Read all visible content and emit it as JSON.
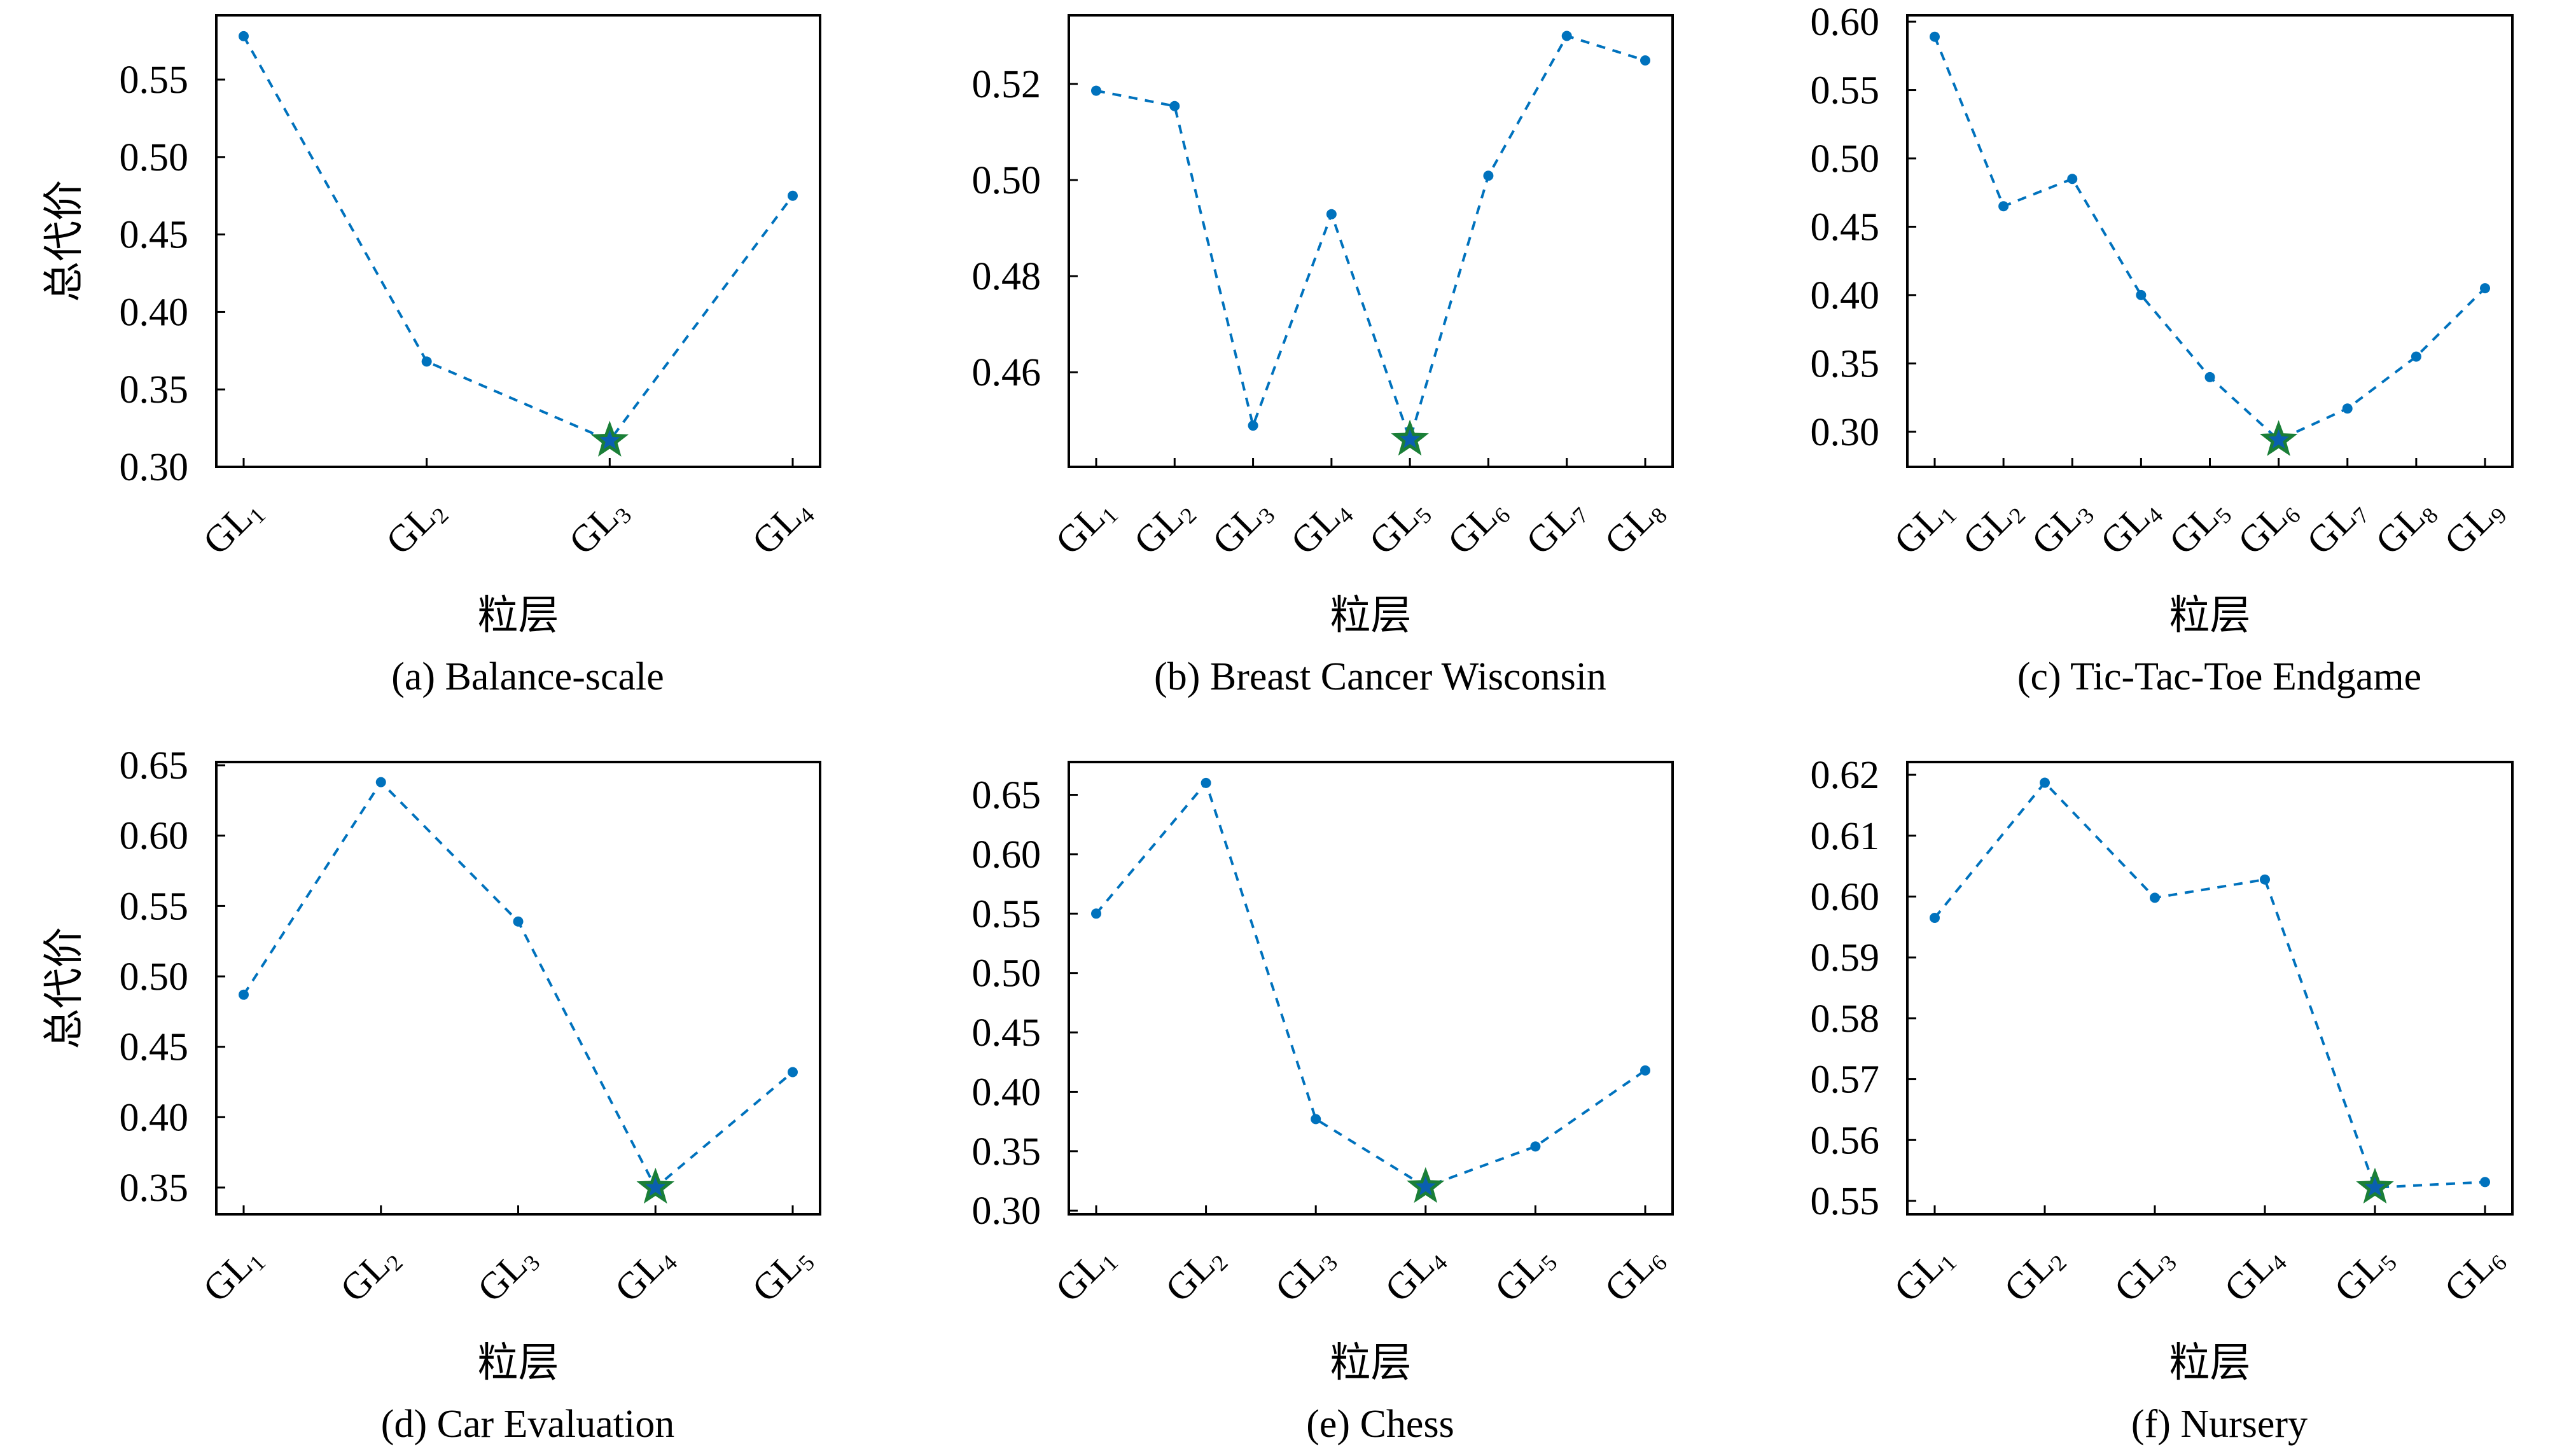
{
  "colors": {
    "line": "#0072BD",
    "marker": "#0072BD",
    "best_star_outline": "#1a7f37",
    "best_star_fill": "#0a5fb0",
    "axis": "#000000"
  },
  "chart_data": [
    {
      "type": "line",
      "title": "(a) Balance-scale",
      "xlabel": "粒层",
      "ylabel": "总代价",
      "categories": [
        "GL1",
        "GL2",
        "GL3",
        "GL4"
      ],
      "values": [
        0.578,
        0.368,
        0.317,
        0.475
      ],
      "best_index": 2,
      "ylim": [
        0.3,
        0.5915
      ],
      "yticks": [
        "0.30",
        "0.35",
        "0.40",
        "0.45",
        "0.50",
        "0.55"
      ],
      "grid": false
    },
    {
      "type": "line",
      "title": "(b) Breast Cancer Wisconsin",
      "xlabel": "粒层",
      "ylabel": "",
      "categories": [
        "GL1",
        "GL2",
        "GL3",
        "GL4",
        "GL5",
        "GL6",
        "GL7",
        "GL8"
      ],
      "values": [
        0.5186,
        0.5154,
        0.4489,
        0.4929,
        0.446,
        0.5009,
        0.53,
        0.5249
      ],
      "best_index": 4,
      "ylim": [
        0.4403,
        0.5343
      ],
      "yticks": [
        "0.46",
        "0.48",
        "0.50",
        "0.52"
      ],
      "grid": false
    },
    {
      "type": "line",
      "title": "(c) Tic-Tac-Toe Endgame",
      "xlabel": "粒层",
      "ylabel": "",
      "categories": [
        "GL1",
        "GL2",
        "GL3",
        "GL4",
        "GL5",
        "GL6",
        "GL7",
        "GL8",
        "GL9"
      ],
      "values": [
        0.589,
        0.465,
        0.485,
        0.4,
        0.34,
        0.294,
        0.317,
        0.355,
        0.405
      ],
      "best_index": 5,
      "ylim": [
        0.2743,
        0.6047
      ],
      "yticks": [
        "0.30",
        "0.35",
        "0.40",
        "0.45",
        "0.50",
        "0.55",
        "0.60"
      ],
      "grid": false
    },
    {
      "type": "line",
      "title": "(d) Car Evaluation",
      "xlabel": "粒层",
      "ylabel": "总代价",
      "categories": [
        "GL1",
        "GL2",
        "GL3",
        "GL4",
        "GL5"
      ],
      "values": [
        0.487,
        0.638,
        0.539,
        0.35,
        0.432
      ],
      "best_index": 3,
      "ylim": [
        0.331,
        0.6523
      ],
      "yticks": [
        "0.35",
        "0.40",
        "0.45",
        "0.50",
        "0.55",
        "0.60",
        "0.65"
      ],
      "grid": false
    },
    {
      "type": "line",
      "title": "(e) Chess",
      "xlabel": "粒层",
      "ylabel": "",
      "categories": [
        "GL1",
        "GL2",
        "GL3",
        "GL4",
        "GL5",
        "GL6"
      ],
      "values": [
        0.55,
        0.66,
        0.377,
        0.32,
        0.354,
        0.418
      ],
      "best_index": 3,
      "ylim": [
        0.2969,
        0.6776
      ],
      "yticks": [
        "0.30",
        "0.35",
        "0.40",
        "0.45",
        "0.50",
        "0.55",
        "0.60",
        "0.65"
      ],
      "grid": false
    },
    {
      "type": "line",
      "title": "(f) Nursery",
      "xlabel": "粒层",
      "ylabel": "",
      "categories": [
        "GL1",
        "GL2",
        "GL3",
        "GL4",
        "GL5",
        "GL6"
      ],
      "values": [
        0.5965,
        0.6187,
        0.5998,
        0.6028,
        0.5522,
        0.5531
      ],
      "best_index": 4,
      "ylim": [
        0.5478,
        0.6221
      ],
      "yticks": [
        "0.55",
        "0.56",
        "0.57",
        "0.58",
        "0.59",
        "0.60",
        "0.61",
        "0.62"
      ],
      "grid": false
    }
  ]
}
